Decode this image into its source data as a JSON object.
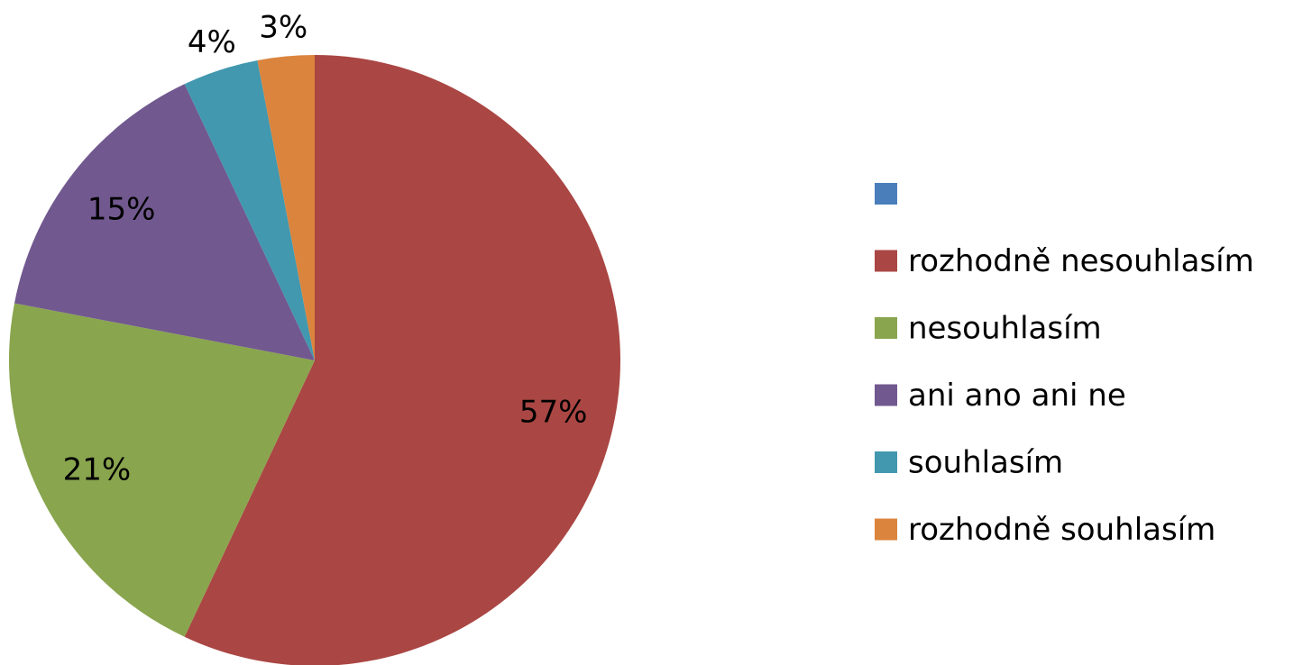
{
  "chart_data": {
    "type": "pie",
    "categories": [
      null,
      "rozhodně nesouhlasím",
      "nesouhlasím",
      "ani ano ani ne",
      "souhlasím",
      "rozhodně souhlasím"
    ],
    "values": [
      0,
      57,
      21,
      15,
      4,
      3
    ],
    "value_labels": [
      null,
      "57%",
      "21%",
      "15%",
      "4%",
      "3%"
    ],
    "colors": [
      "#4a7ebb",
      "#aa4643",
      "#89a54e",
      "#71588f",
      "#4198af",
      "#db843d"
    ],
    "legend": "right"
  }
}
